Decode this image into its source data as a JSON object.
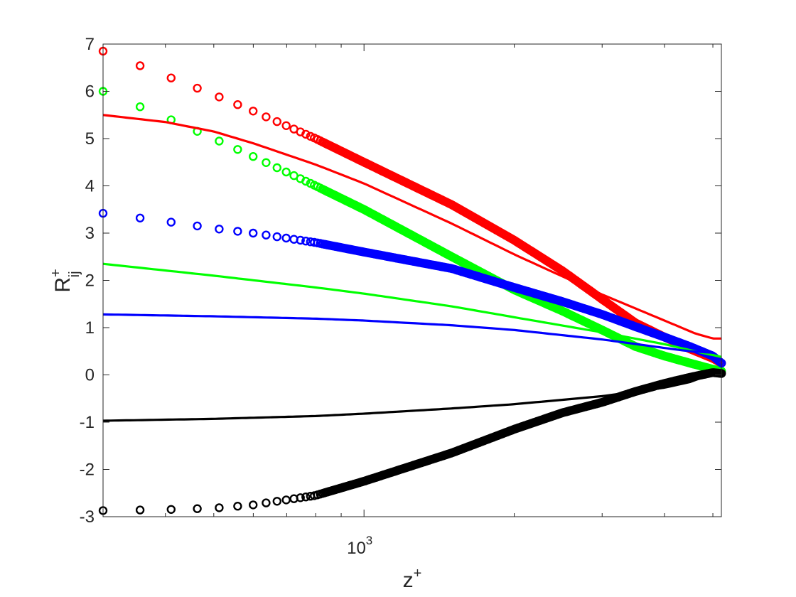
{
  "chart_data": {
    "type": "scatter",
    "title": "",
    "xlabel": {
      "base": "z",
      "sup": "+"
    },
    "ylabel": {
      "base": "R",
      "sup": "+",
      "sub": "ij"
    },
    "xscale": "log",
    "xlim": [
      300,
      5200
    ],
    "ylim": [
      -3,
      7
    ],
    "yticks": [
      -3,
      -2,
      -1,
      0,
      1,
      2,
      3,
      4,
      5,
      6,
      7
    ],
    "xticks_major": [
      {
        "value": 1000,
        "base": "10",
        "exp": "3"
      }
    ],
    "xticks_minor": [
      300,
      400,
      500,
      600,
      700,
      800,
      900,
      2000,
      3000,
      4000,
      5000
    ],
    "grid": false,
    "legend": "none",
    "series": [
      {
        "style": "line",
        "color": "#ff0000",
        "x": [
          300,
          400,
          500,
          600,
          800,
          1000,
          1500,
          2000,
          3000,
          4000,
          4600,
          5000,
          5200
        ],
        "y": [
          5.5,
          5.35,
          5.15,
          4.9,
          4.45,
          4.05,
          3.2,
          2.55,
          1.7,
          1.15,
          0.88,
          0.77,
          0.77
        ]
      },
      {
        "style": "line",
        "color": "#00ff00",
        "x": [
          300,
          500,
          800,
          1000,
          1500,
          2000,
          3000,
          4000,
          4600,
          5000,
          5200
        ],
        "y": [
          2.35,
          2.1,
          1.85,
          1.72,
          1.45,
          1.22,
          0.9,
          0.65,
          0.5,
          0.42,
          0.38
        ]
      },
      {
        "style": "line",
        "color": "#0000ff",
        "x": [
          300,
          500,
          800,
          1000,
          1500,
          2000,
          3000,
          4000,
          4500,
          5000
        ],
        "y": [
          1.28,
          1.24,
          1.19,
          1.15,
          1.05,
          0.95,
          0.75,
          0.57,
          0.5,
          0.47
        ]
      },
      {
        "style": "line",
        "color": "#000000",
        "x": [
          300,
          500,
          800,
          1000,
          1500,
          2000,
          3000,
          4000,
          4500,
          5000,
          5200
        ],
        "y": [
          -0.97,
          -0.93,
          -0.87,
          -0.82,
          -0.71,
          -0.62,
          -0.45,
          -0.27,
          -0.15,
          0.03,
          0.07
        ]
      },
      {
        "style": "markers",
        "marker": "circle-open",
        "color": "#ff0000",
        "x": [
          300,
          400,
          500,
          600,
          800,
          1000,
          1500,
          2000,
          2500,
          3000,
          3500,
          4000,
          4500,
          5000,
          5200
        ],
        "y": [
          6.85,
          6.33,
          5.93,
          5.58,
          5.0,
          4.5,
          3.6,
          2.85,
          2.2,
          1.6,
          1.1,
          0.8,
          0.55,
          0.35,
          0.25
        ]
      },
      {
        "style": "markers",
        "marker": "circle-open",
        "color": "#00ff00",
        "x": [
          300,
          400,
          500,
          600,
          800,
          1000,
          1500,
          2000,
          2500,
          3000,
          3500,
          4000,
          4500,
          5000,
          5200
        ],
        "y": [
          6.0,
          5.45,
          5.0,
          4.62,
          4.0,
          3.5,
          2.5,
          1.8,
          1.35,
          0.95,
          0.6,
          0.4,
          0.25,
          0.12,
          0.08
        ]
      },
      {
        "style": "markers",
        "marker": "circle-open",
        "color": "#0000ff",
        "x": [
          300,
          400,
          500,
          600,
          800,
          1000,
          1500,
          2000,
          2500,
          3000,
          3500,
          4000,
          4500,
          5000,
          5200
        ],
        "y": [
          3.42,
          3.25,
          3.1,
          3.0,
          2.8,
          2.6,
          2.25,
          1.85,
          1.55,
          1.28,
          1.02,
          0.8,
          0.6,
          0.4,
          0.25
        ]
      },
      {
        "style": "markers",
        "marker": "circle-open",
        "color": "#000000",
        "x": [
          300,
          400,
          500,
          600,
          800,
          1000,
          1500,
          2000,
          2500,
          3000,
          3500,
          4000,
          4500,
          5000,
          5200
        ],
        "y": [
          -2.87,
          -2.85,
          -2.82,
          -2.75,
          -2.55,
          -2.25,
          -1.65,
          -1.15,
          -0.8,
          -0.58,
          -0.35,
          -0.18,
          -0.05,
          0.05,
          0.03
        ]
      }
    ]
  }
}
